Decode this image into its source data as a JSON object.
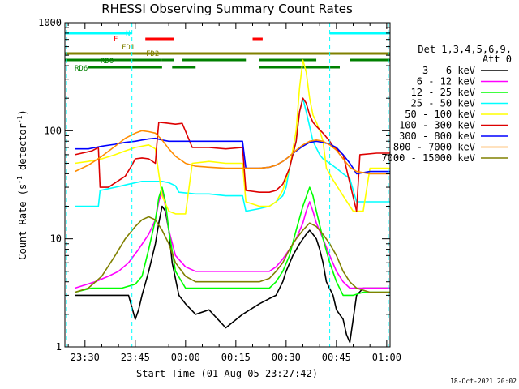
{
  "chart_data": {
    "type": "line",
    "title": "RHESSI Observing Summary Count Rates",
    "xlabel": "Start Time (01-Aug-05 23:27:42)",
    "ylabel_main": "Count Rate (s",
    "ylabel_sup1": "-1",
    "ylabel_mid": " detector",
    "ylabel_sup2": "-1",
    "ylabel_end": ")",
    "x_scale": "time",
    "x_range_minutes": [
      -3,
      94
    ],
    "x_ticks": [
      {
        "m": 3,
        "label": "23:30"
      },
      {
        "m": 18,
        "label": "23:45"
      },
      {
        "m": 33,
        "label": "00:00"
      },
      {
        "m": 48,
        "label": "00:15"
      },
      {
        "m": 63,
        "label": "00:30"
      },
      {
        "m": 78,
        "label": "00:45"
      },
      {
        "m": 93,
        "label": "01:00"
      }
    ],
    "y_scale": "log",
    "ylim": [
      1,
      1000
    ],
    "y_ticks": [
      {
        "v": 1,
        "label": "1"
      },
      {
        "v": 10,
        "label": "10"
      },
      {
        "v": 100,
        "label": "100"
      },
      {
        "v": 1000,
        "label": "1000"
      }
    ],
    "legend_header": [
      "Det 1,3,4,5,6,9,",
      "Att 0"
    ],
    "legend_position": "right",
    "timestamp": "18-Oct-2021 20:02",
    "state_labels": [
      {
        "text": "N",
        "color": "#00ffff"
      },
      {
        "text": "F",
        "color": "#ff0000"
      },
      {
        "text": "FD1",
        "color": "#808000"
      },
      {
        "text": "FD2",
        "color": "#808000"
      },
      {
        "text": "RD0",
        "color": "#008000"
      },
      {
        "text": "RD6",
        "color": "#008000"
      }
    ],
    "state_bars": {
      "N": {
        "color": "#00ffff",
        "segments": [
          [
            -3,
            17
          ],
          [
            76,
            94
          ]
        ]
      },
      "F": {
        "color": "#ff0000",
        "segments": [
          [
            21,
            29.5
          ],
          [
            53,
            56
          ]
        ]
      },
      "FD": {
        "color": "#808000",
        "segments": [
          [
            -3,
            94
          ]
        ]
      },
      "RD0": {
        "color": "#008000",
        "segments": [
          [
            -3,
            26
          ],
          [
            26,
            29.5
          ],
          [
            32,
            51
          ],
          [
            55,
            72
          ],
          [
            82,
            94
          ]
        ]
      },
      "RD6": {
        "color": "#008000",
        "segments": [
          [
            4,
            26
          ],
          [
            29,
            36
          ],
          [
            55,
            79
          ]
        ]
      }
    },
    "vlines_cyan": [
      -2.5,
      17,
      76,
      93.5
    ],
    "series": [
      {
        "name": "3 - 6 keV",
        "color": "#000000",
        "x": [
          0,
          6,
          10,
          14,
          16,
          18,
          19,
          20,
          22,
          24,
          25,
          26,
          27,
          28,
          29,
          31,
          33,
          36,
          40,
          45,
          50,
          55,
          58,
          60,
          62,
          63,
          65,
          67,
          69,
          70,
          71,
          72,
          73,
          74,
          75,
          77,
          78,
          80,
          81,
          82,
          84,
          86,
          88,
          91,
          94
        ],
        "y": [
          3,
          3,
          3,
          3,
          3,
          1.8,
          2.2,
          3,
          5,
          9,
          14,
          20,
          18,
          12,
          6,
          3,
          2.5,
          2,
          2.2,
          1.5,
          2,
          2.5,
          2.8,
          3,
          4,
          5,
          7,
          9,
          11,
          12,
          11,
          10,
          8,
          6,
          4,
          3,
          2.2,
          1.8,
          1.3,
          1.1,
          3,
          3.5,
          3.5,
          3.5,
          3.5
        ]
      },
      {
        "name": "6 - 12 keV",
        "color": "#ff00ff",
        "x": [
          0,
          6,
          10,
          13,
          16,
          19,
          22,
          24,
          25,
          26,
          27,
          28,
          30,
          33,
          36,
          40,
          45,
          50,
          55,
          58,
          60,
          62,
          64,
          66,
          68,
          69,
          70,
          71,
          72,
          74,
          76,
          78,
          80,
          82,
          84,
          88,
          94
        ],
        "y": [
          3.5,
          4,
          4.5,
          5,
          6,
          8,
          11,
          15,
          22,
          28,
          20,
          12,
          7,
          5.5,
          5,
          5,
          5,
          5,
          5,
          5,
          5.5,
          6.5,
          8,
          10,
          14,
          18,
          22,
          18,
          14,
          10,
          7,
          5,
          4,
          3.5,
          3.5,
          3.5,
          3.5
        ]
      },
      {
        "name": "12 - 25 keV",
        "color": "#00ff00",
        "x": [
          0,
          5,
          10,
          14,
          18,
          20,
          22,
          24,
          25,
          26,
          27,
          28,
          30,
          33,
          36,
          40,
          45,
          50,
          55,
          58,
          60,
          62,
          64,
          66,
          68,
          70,
          71,
          72,
          74,
          76,
          78,
          80,
          83,
          86,
          90,
          94
        ],
        "y": [
          3.2,
          3.5,
          3.5,
          3.5,
          3.8,
          4.5,
          8,
          15,
          24,
          30,
          22,
          12,
          5,
          3.5,
          3.5,
          3.5,
          3.5,
          3.5,
          3.5,
          3.5,
          4,
          5,
          7,
          12,
          20,
          30,
          25,
          18,
          10,
          6,
          4,
          3,
          3,
          3.2,
          3.2,
          3.2
        ]
      },
      {
        "name": "25 - 50 keV",
        "color": "#00ffff",
        "x": [
          0,
          7,
          7.5,
          12,
          16,
          18,
          20,
          22,
          24,
          26,
          28,
          30,
          31,
          36,
          40,
          45,
          50,
          51,
          55,
          58,
          60,
          62,
          63,
          64,
          66,
          67,
          68,
          69,
          70,
          71,
          73,
          74,
          76,
          78,
          80,
          82,
          84,
          86,
          88,
          94
        ],
        "y": [
          20,
          20,
          28,
          30,
          32,
          33,
          34,
          34,
          34,
          34,
          33,
          31,
          27,
          26,
          26,
          25,
          25,
          18,
          19,
          20,
          22,
          25,
          30,
          45,
          80,
          150,
          200,
          150,
          110,
          80,
          60,
          55,
          50,
          45,
          40,
          36,
          22,
          22,
          22,
          22
        ]
      },
      {
        "name": "50 - 100 keV",
        "color": "#ffff00",
        "x": [
          0,
          4,
          8,
          12,
          15,
          18,
          20,
          22,
          24,
          25,
          26,
          28,
          30,
          33,
          35,
          40,
          45,
          50,
          51,
          55,
          58,
          60,
          62,
          64,
          66,
          67,
          68,
          69,
          70,
          71,
          72,
          73,
          74,
          75,
          77,
          80,
          83,
          86,
          88,
          94
        ],
        "y": [
          50,
          52,
          55,
          60,
          65,
          70,
          72,
          74,
          68,
          40,
          25,
          18,
          17,
          17,
          50,
          52,
          50,
          50,
          22,
          20,
          20,
          22,
          28,
          45,
          100,
          250,
          450,
          350,
          200,
          140,
          120,
          100,
          80,
          45,
          35,
          25,
          18,
          18,
          45,
          45
        ]
      },
      {
        "name": "100 - 300 keV",
        "color": "#dd0000",
        "x": [
          0,
          5,
          7,
          7.5,
          10,
          15,
          17,
          18,
          20,
          22,
          24,
          24.5,
          25,
          27,
          30,
          32,
          35,
          40,
          45,
          50,
          51,
          55,
          58,
          60,
          62,
          64,
          66,
          67,
          68,
          69,
          70,
          71,
          72,
          74,
          76,
          77,
          80,
          84,
          85,
          90,
          94
        ],
        "y": [
          60,
          65,
          70,
          30,
          30,
          38,
          48,
          55,
          56,
          55,
          50,
          80,
          120,
          118,
          115,
          117,
          70,
          70,
          68,
          70,
          28,
          27,
          27,
          28,
          32,
          45,
          80,
          150,
          200,
          180,
          140,
          120,
          110,
          95,
          80,
          72,
          60,
          18,
          60,
          62,
          62
        ]
      },
      {
        "name": "300 - 800 keV",
        "color": "#0000ff",
        "x": [
          0,
          4,
          8,
          12,
          15,
          18,
          20,
          22,
          24,
          26,
          28,
          30,
          33,
          36,
          40,
          45,
          50,
          51,
          55,
          58,
          60,
          62,
          64,
          66,
          68,
          70,
          72,
          74,
          76,
          78,
          80,
          82,
          83,
          84,
          88,
          94
        ],
        "y": [
          68,
          68,
          72,
          75,
          78,
          80,
          82,
          84,
          85,
          82,
          80,
          80,
          80,
          80,
          80,
          80,
          80,
          45,
          45,
          46,
          48,
          52,
          58,
          65,
          72,
          78,
          80,
          78,
          75,
          70,
          60,
          50,
          45,
          40,
          42,
          42
        ]
      },
      {
        "name": "800 - 7000 keV",
        "color": "#ff8c00",
        "x": [
          0,
          4,
          8,
          12,
          15,
          18,
          20,
          22,
          24,
          26,
          28,
          30,
          33,
          36,
          40,
          45,
          50,
          55,
          58,
          60,
          62,
          64,
          66,
          68,
          70,
          72,
          74,
          76,
          78,
          80,
          82,
          84,
          88,
          94
        ],
        "y": [
          42,
          48,
          58,
          72,
          85,
          95,
          100,
          98,
          95,
          82,
          68,
          58,
          50,
          47,
          46,
          45,
          45,
          45,
          46,
          48,
          52,
          58,
          66,
          74,
          80,
          82,
          80,
          74,
          66,
          55,
          46,
          42,
          40,
          40
        ]
      },
      {
        "name": "7000 - 15000 keV",
        "color": "#808000",
        "x": [
          0,
          4,
          8,
          12,
          15,
          18,
          20,
          22,
          24,
          26,
          28,
          30,
          33,
          36,
          40,
          45,
          50,
          55,
          58,
          60,
          62,
          64,
          66,
          68,
          70,
          72,
          74,
          76,
          78,
          80,
          82,
          84,
          88,
          94
        ],
        "y": [
          3.2,
          3.5,
          4.5,
          7,
          10,
          13,
          15,
          16,
          15,
          12,
          9,
          6,
          4.5,
          4,
          4,
          4,
          4,
          4,
          4.3,
          5,
          6,
          8,
          10,
          12,
          14,
          13,
          11,
          9,
          7,
          5,
          4,
          3.5,
          3.2,
          3.2
        ]
      }
    ]
  }
}
